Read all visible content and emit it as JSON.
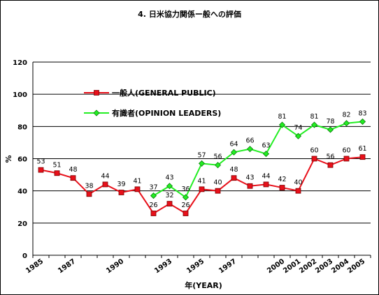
{
  "chart_data": {
    "type": "line",
    "title": "4. 日米協力関係ー般への評価",
    "xlabel": "年(YEAR)",
    "ylabel": "%",
    "ylim": [
      0,
      120
    ],
    "yticks": [
      0,
      20,
      40,
      60,
      80,
      100,
      120
    ],
    "grid": true,
    "legend_position": "top-left (inside plot)",
    "x_years": [
      1985,
      1986,
      1987,
      1988,
      1989,
      1990,
      1991,
      1992,
      1993,
      1994,
      1995,
      1996,
      1997,
      1998,
      1999,
      2000,
      2001,
      2002,
      2003,
      2004,
      2005
    ],
    "x_tick_labels": [
      {
        "year": 1985,
        "label": "1985"
      },
      {
        "year": 1987,
        "label": "1987"
      },
      {
        "year": 1990,
        "label": "1990"
      },
      {
        "year": 1993,
        "label": "1993"
      },
      {
        "year": 1995,
        "label": "1995"
      },
      {
        "year": 1997,
        "label": "1997"
      },
      {
        "year": 2000,
        "label": "2000"
      },
      {
        "year": 2001,
        "label": "2001"
      },
      {
        "year": 2002,
        "label": "2002"
      },
      {
        "year": 2003,
        "label": "2003"
      },
      {
        "year": 2004,
        "label": "2004"
      },
      {
        "year": 2005,
        "label": "2005"
      }
    ],
    "series": [
      {
        "name": "一般人(GENERAL PUBLIC)",
        "color": "#e8101a",
        "marker": "square",
        "values": [
          53,
          51,
          48,
          38,
          44,
          39,
          41,
          26,
          32,
          26,
          41,
          40,
          48,
          43,
          44,
          42,
          40,
          60,
          56,
          60,
          61
        ]
      },
      {
        "name": "有識者(OPINION LEADERS)",
        "color": "#22ee22",
        "marker": "diamond",
        "values": [
          null,
          null,
          null,
          null,
          null,
          null,
          null,
          37,
          43,
          36,
          57,
          56,
          64,
          66,
          63,
          81,
          74,
          81,
          78,
          82,
          83
        ]
      }
    ]
  }
}
